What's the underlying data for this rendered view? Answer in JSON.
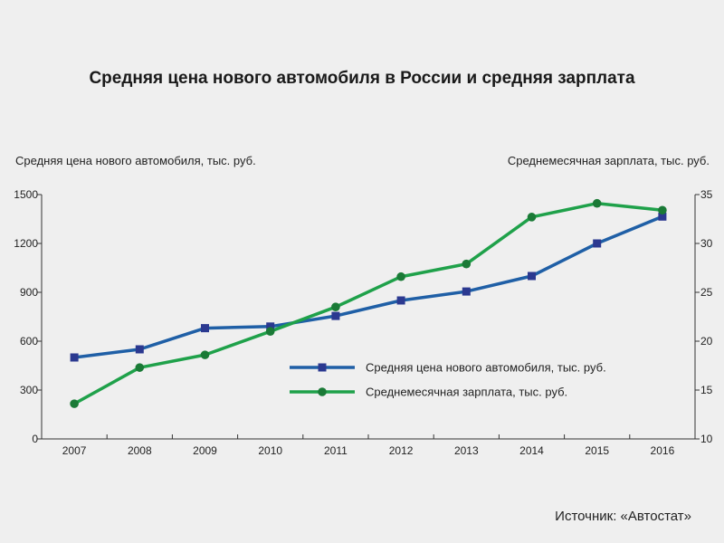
{
  "title": "Средняя цена нового автомобиля в России и средняя зарплата",
  "source": "Источник: «Автостат»",
  "colors": {
    "car_price": "#1f5fa6",
    "car_price_marker": "#2b3990",
    "salary": "#1fa14a",
    "salary_marker": "#1a7a36",
    "axis": "#333333",
    "background": "#efefef"
  },
  "chart_data": {
    "type": "line",
    "title": "Средняя цена нового автомобиля в России и средняя зарплата",
    "x": [
      "2007",
      "2008",
      "2009",
      "2010",
      "2011",
      "2012",
      "2013",
      "2014",
      "2015",
      "2016"
    ],
    "y_left": {
      "label": "Средняя цена нового автомобиля, тыс. руб.",
      "range": [
        0,
        1500
      ],
      "ticks": [
        "0",
        "300",
        "600",
        "900",
        "1200",
        "1500"
      ]
    },
    "y_right": {
      "label": "Среднемесячная зарплата, тыс. руб.",
      "range": [
        10,
        35
      ],
      "ticks": [
        "10",
        "15",
        "20",
        "25",
        "30",
        "35"
      ]
    },
    "series": [
      {
        "name": "Средняя цена нового автомобиля, тыс. руб.",
        "axis": "left",
        "marker": "square",
        "values": [
          500,
          550,
          680,
          690,
          755,
          850,
          905,
          1000,
          1200,
          1365
        ]
      },
      {
        "name": "Среднемесячная зарплата, тыс. руб.",
        "axis": "right",
        "marker": "circle",
        "values": [
          13.6,
          17.3,
          18.6,
          21.0,
          23.5,
          26.6,
          27.9,
          32.7,
          34.1,
          33.4
        ]
      }
    ],
    "legend_position": "center-right",
    "grid": false
  }
}
